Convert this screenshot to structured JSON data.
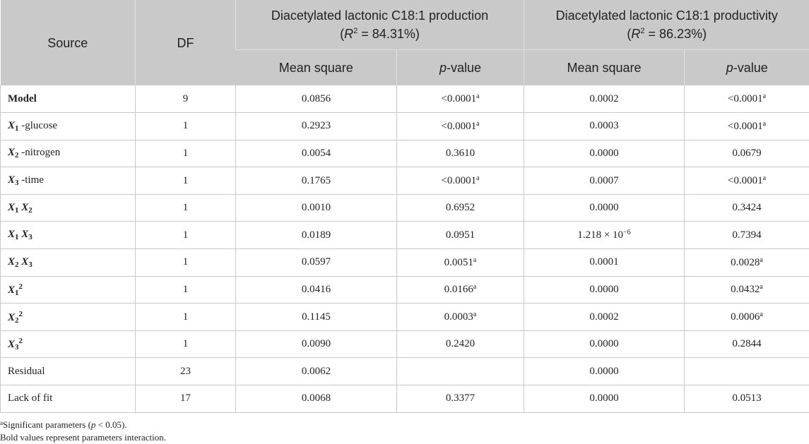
{
  "table": {
    "header": {
      "source": "Source",
      "df": "DF",
      "group1_line1": "Diacetylated lactonic C18:1 production",
      "group1_r2_label": "R",
      "group1_r2_sup": "2",
      "group1_r2_value": " = 84.31%)",
      "group2_line1": "Diacetylated lactonic C18:1 productivity",
      "group2_r2_label": "R",
      "group2_r2_sup": "2",
      "group2_r2_value": " = 86.23%)",
      "mean_square": "Mean square",
      "p_value_p": "p",
      "p_value_rest": "-value"
    },
    "rows": [
      {
        "source_x": "",
        "source_sub": "",
        "source_text": "Model",
        "df": "9",
        "ms1": "0.0856",
        "p1": "<0.0001",
        "p1_note": "a",
        "ms2": "0.0002",
        "p2": "<0.0001",
        "p2_note": "a"
      },
      {
        "source_x": "X",
        "source_sub": "1",
        "source_text": " -glucose",
        "df": "1",
        "ms1": "0.2923",
        "p1": "<0.0001",
        "p1_note": "a",
        "ms2": "0.0003",
        "p2": "<0.0001",
        "p2_note": "a"
      },
      {
        "source_x": "X",
        "source_sub": "2",
        "source_text": " -nitrogen",
        "df": "1",
        "ms1": "0.0054",
        "p1": "0.3610",
        "p1_note": "",
        "ms2": "0.0000",
        "p2": "0.0679",
        "p2_note": ""
      },
      {
        "source_x": "X",
        "source_sub": "3",
        "source_text": " -time",
        "df": "1",
        "ms1": "0.1765",
        "p1": "<0.0001",
        "p1_note": "a",
        "ms2": "0.0007",
        "p2": "<0.0001",
        "p2_note": "a"
      },
      {
        "source_x": "X",
        "source_sub": "1",
        "source_x2": "X",
        "source_sub2": "2",
        "df": "1",
        "ms1": "0.0010",
        "p1": "0.6952",
        "p1_note": "",
        "ms2": "0.0000",
        "p2": "0.3424",
        "p2_note": ""
      },
      {
        "source_x": "X",
        "source_sub": "1",
        "source_x2": "X",
        "source_sub2": "3",
        "df": "1",
        "ms1": "0.0189",
        "p1": "0.0951",
        "p1_note": "",
        "ms2": "1.218 × 10",
        "ms2_sup": "−6",
        "p2": "0.7394",
        "p2_note": ""
      },
      {
        "source_x": "X",
        "source_sub": "2",
        "source_x2": "X",
        "source_sub2": "3",
        "df": "1",
        "ms1": "0.0597",
        "p1": "0.0051",
        "p1_note": "a",
        "ms2": "0.0001",
        "p2": "0.0028",
        "p2_note": "a"
      },
      {
        "source_x": "X",
        "source_sub": "1",
        "source_sup": "2",
        "df": "1",
        "ms1": "0.0416",
        "p1": "0.0166",
        "p1_note": "a",
        "ms2": "0.0000",
        "p2": "0.0432",
        "p2_note": "a"
      },
      {
        "source_x": "X",
        "source_sub": "2",
        "source_sup": "2",
        "df": "1",
        "ms1": "0.1145",
        "p1": "0.0003",
        "p1_note": "a",
        "ms2": "0.0002",
        "p2": "0.0006",
        "p2_note": "a"
      },
      {
        "source_x": "X",
        "source_sub": "3",
        "source_sup": "2",
        "df": "1",
        "ms1": "0.0090",
        "p1": "0.2420",
        "p1_note": "",
        "ms2": "0.0000",
        "p2": "0.2844",
        "p2_note": ""
      },
      {
        "source_x": "",
        "source_sub": "",
        "source_text": "Residual",
        "df": "23",
        "ms1": "0.0062",
        "p1": "",
        "p1_note": "",
        "ms2": "0.0000",
        "p2": "",
        "p2_note": ""
      },
      {
        "source_x": "",
        "source_sub": "",
        "source_text": "Lack of fit",
        "df": "17",
        "ms1": "0.0068",
        "p1": "0.3377",
        "p1_note": "",
        "ms2": "0.0000",
        "p2": "0.0513",
        "p2_note": ""
      }
    ]
  },
  "footnotes": {
    "note_a_sup": "a",
    "note_a_text_1": "Significant parameters (",
    "note_a_p": "p",
    "note_a_text_2": " < 0.05).",
    "note_bold": "Bold values represent parameters interaction."
  },
  "colors": {
    "header_bg": "#c9c9c9",
    "border": "#c8c8c8"
  }
}
